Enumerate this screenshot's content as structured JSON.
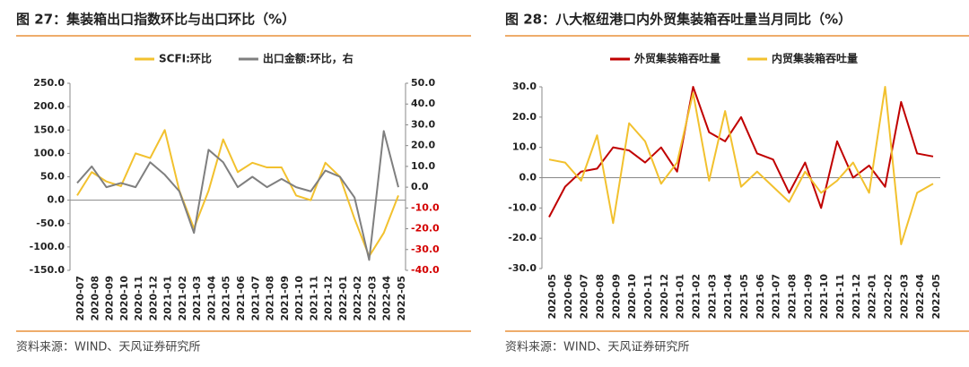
{
  "chart_data": [
    {
      "type": "line",
      "title": "图 27：集装箱出口指数环比与出口环比（%）",
      "source": "资料来源：WIND、天风证券研究所",
      "categories": [
        "2020-07",
        "2020-08",
        "2020-09",
        "2020-10",
        "2020-11",
        "2020-12",
        "2021-01",
        "2021-02",
        "2021-03",
        "2021-04",
        "2021-05",
        "2021-06",
        "2021-07",
        "2021-08",
        "2021-09",
        "2021-10",
        "2021-11",
        "2021-12",
        "2022-01",
        "2022-02",
        "2022-03",
        "2022-04",
        "2022-05"
      ],
      "series": [
        {
          "name": "SCFI:环比",
          "color": "#f2c12e",
          "axis": "y",
          "values": [
            10,
            60,
            40,
            30,
            100,
            90,
            150,
            20,
            -60,
            20,
            130,
            60,
            80,
            70,
            70,
            10,
            0,
            80,
            50,
            -40,
            -120,
            -70,
            10
          ]
        },
        {
          "name": "出口金额:环比，右",
          "color": "#7f7f7f",
          "axis": "y2",
          "values": [
            2,
            10,
            0,
            2,
            0,
            12,
            6,
            -2,
            -22,
            18,
            12,
            0,
            5,
            0,
            4,
            0,
            -2,
            8,
            5,
            -5,
            -35,
            27,
            0
          ]
        }
      ],
      "ylim": [
        -150,
        250
      ],
      "yticks": [
        {
          "value": -150,
          "label": "-150.0"
        },
        {
          "value": -100,
          "label": "-100.0"
        },
        {
          "value": -50,
          "label": "-50.0"
        },
        {
          "value": 0,
          "label": "0.0"
        },
        {
          "value": 50,
          "label": "50.0"
        },
        {
          "value": 100,
          "label": "100.0"
        },
        {
          "value": 150,
          "label": "150.0"
        },
        {
          "value": 200,
          "label": "200.0"
        },
        {
          "value": 250,
          "label": "250.0"
        }
      ],
      "y2lim": [
        -40,
        50
      ],
      "y2ticks": [
        {
          "value": -40,
          "label": "-40.0"
        },
        {
          "value": -30,
          "label": "-30.0"
        },
        {
          "value": -20,
          "label": "-20.0"
        },
        {
          "value": -10,
          "label": "-10.0"
        },
        {
          "value": 0,
          "label": "0.0"
        },
        {
          "value": 10,
          "label": "10.0"
        },
        {
          "value": 20,
          "label": "20.0"
        },
        {
          "value": 30,
          "label": "30.0"
        },
        {
          "value": 40,
          "label": "40.0"
        },
        {
          "value": 50,
          "label": "50.0"
        }
      ]
    },
    {
      "type": "line",
      "title": "图 28：八大枢纽港口内外贸集装箱吞吐量当月同比（%）",
      "source": "资料来源：WIND、天风证券研究所",
      "categories": [
        "2020-05",
        "2020-06",
        "2020-07",
        "2020-08",
        "2020-09",
        "2020-10",
        "2020-11",
        "2020-12",
        "2021-01",
        "2021-02",
        "2021-03",
        "2021-04",
        "2021-05",
        "2021-06",
        "2021-07",
        "2021-08",
        "2021-09",
        "2021-10",
        "2021-11",
        "2021-12",
        "2022-01",
        "2022-02",
        "2022-03",
        "2022-04",
        "2022-05"
      ],
      "series": [
        {
          "name": "外贸集装箱吞吐量",
          "color": "#c00000",
          "axis": "y",
          "values": [
            -13,
            -3,
            2,
            3,
            10,
            9,
            5,
            10,
            2,
            30,
            15,
            12,
            20,
            8,
            6,
            -5,
            5,
            -10,
            12,
            0,
            4,
            -3,
            25,
            8,
            7
          ]
        },
        {
          "name": "内贸集装箱吞吐量",
          "color": "#f2c12e",
          "axis": "y",
          "values": [
            6,
            5,
            -1,
            14,
            -15,
            18,
            12,
            -2,
            5,
            28,
            -1,
            22,
            -3,
            2,
            -3,
            -8,
            2,
            -5,
            -1,
            5,
            -5,
            30,
            -22,
            -5,
            -2
          ]
        }
      ],
      "ylim": [
        -30,
        30
      ],
      "yticks": [
        {
          "value": -30,
          "label": "-30.0"
        },
        {
          "value": -20,
          "label": "-20.0"
        },
        {
          "value": -10,
          "label": "-10.0"
        },
        {
          "value": 0,
          "label": "0.0"
        },
        {
          "value": 10,
          "label": "10.0"
        },
        {
          "value": 20,
          "label": "20.0"
        },
        {
          "value": 30,
          "label": "30.0"
        }
      ]
    }
  ]
}
